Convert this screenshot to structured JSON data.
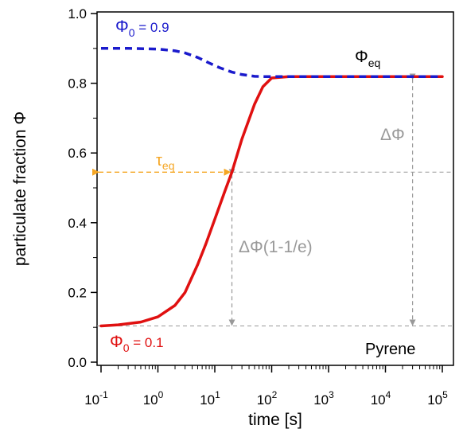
{
  "chart_data": {
    "type": "line",
    "title": "",
    "xlabel": "time [s]",
    "ylabel": "particulate fraction Φ",
    "x_scale": "log",
    "xlim": [
      0.1,
      100000
    ],
    "ylim": [
      0.0,
      1.0
    ],
    "x_ticks": [
      {
        "base": "10",
        "exp": "-1",
        "value": 0.1
      },
      {
        "base": "10",
        "exp": "0",
        "value": 1
      },
      {
        "base": "10",
        "exp": "1",
        "value": 10
      },
      {
        "base": "10",
        "exp": "2",
        "value": 100
      },
      {
        "base": "10",
        "exp": "3",
        "value": 1000
      },
      {
        "base": "10",
        "exp": "4",
        "value": 10000
      },
      {
        "base": "10",
        "exp": "5",
        "value": 100000
      }
    ],
    "y_ticks": [
      "0.0",
      "0.2",
      "0.4",
      "0.6",
      "0.8",
      "1.0"
    ],
    "grid": false,
    "series": [
      {
        "color": "#e01010",
        "style": "solid",
        "x": [
          0.1,
          0.2,
          0.5,
          1,
          2,
          3,
          5,
          7,
          10,
          15,
          20,
          30,
          50,
          70,
          100,
          200,
          1000,
          10000,
          100000
        ],
        "y": [
          0.104,
          0.107,
          0.115,
          0.13,
          0.163,
          0.2,
          0.28,
          0.34,
          0.41,
          0.49,
          0.545,
          0.64,
          0.74,
          0.79,
          0.815,
          0.819,
          0.819,
          0.819,
          0.819
        ]
      },
      {
        "color": "#1a1acc",
        "style": "dashed",
        "x": [
          0.1,
          0.3,
          1,
          2,
          3,
          5,
          8,
          12,
          20,
          30,
          50,
          70,
          100,
          200,
          1000,
          10000,
          100000
        ],
        "y": [
          0.9,
          0.9,
          0.898,
          0.893,
          0.887,
          0.874,
          0.858,
          0.845,
          0.832,
          0.825,
          0.82,
          0.819,
          0.819,
          0.819,
          0.819,
          0.819,
          0.819
        ]
      }
    ],
    "annotations": {
      "phi0_high": {
        "main": "Φ",
        "sub": "0",
        "rest": " = 0.9",
        "color": "#1a1acc"
      },
      "phi0_low": {
        "main": "Φ",
        "sub": "0",
        "rest": " = 0.1",
        "color": "#e01010"
      },
      "phi_eq": {
        "main": "Φ",
        "sub": "eq",
        "color": "#000000"
      },
      "tau_eq": {
        "main": "τ",
        "sub": "eq",
        "color": "#f5a623",
        "x": 20,
        "y": 0.545
      },
      "delta_phi": {
        "text": "ΔΦ",
        "color": "#999999",
        "x": 30000
      },
      "delta_phi_partial": {
        "text": "ΔΦ(1-1/e)",
        "color": "#999999"
      },
      "compound": {
        "text": "Pyrene",
        "color": "#000000"
      },
      "reference_levels": [
        0.104,
        0.545,
        0.819
      ]
    }
  }
}
